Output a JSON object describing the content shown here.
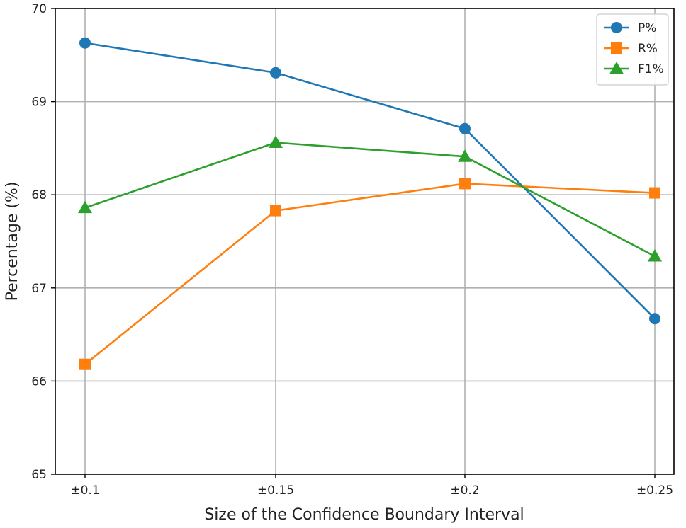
{
  "chart_data": {
    "type": "line",
    "xlabel": "Size of the Confidence Boundary Interval",
    "ylabel": "Percentage (%)",
    "categories": [
      "±0.1",
      "±0.15",
      "±0.2",
      "±0.25"
    ],
    "ylim": [
      65,
      70
    ],
    "yticks": [
      65,
      66,
      67,
      68,
      69,
      70
    ],
    "grid": true,
    "legend_position": "top-right",
    "series": [
      {
        "name": "P%",
        "values": [
          69.63,
          69.31,
          68.71,
          66.67
        ],
        "color": "#1f77b4",
        "marker": "circle"
      },
      {
        "name": "R%",
        "values": [
          66.18,
          67.83,
          68.12,
          68.02
        ],
        "color": "#ff7f0e",
        "marker": "square"
      },
      {
        "name": "F1%",
        "values": [
          67.86,
          68.56,
          68.41,
          67.34
        ],
        "color": "#2ca02c",
        "marker": "triangle"
      }
    ]
  }
}
